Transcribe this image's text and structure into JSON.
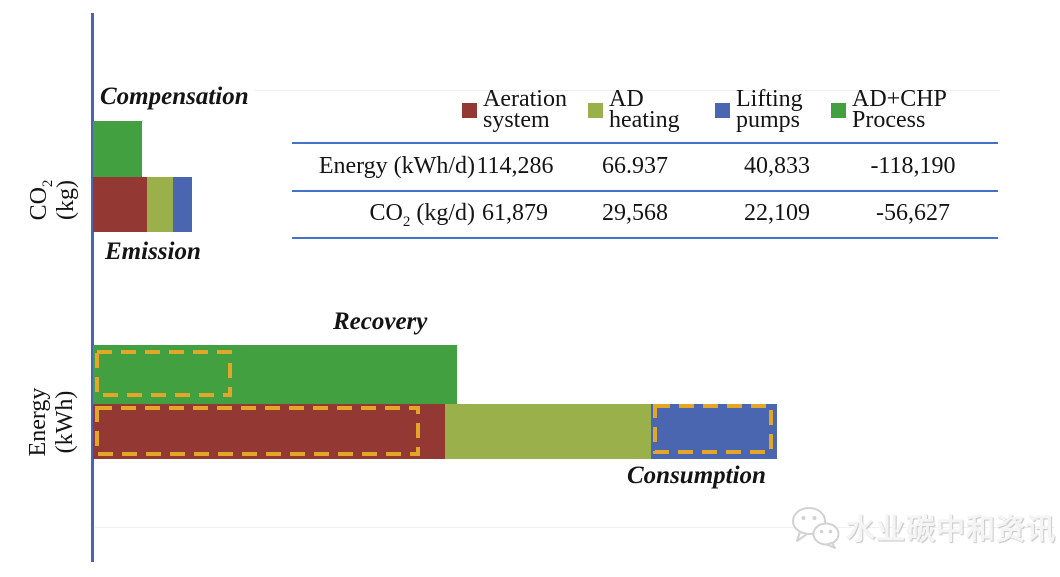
{
  "figure": {
    "labels": {
      "compensation": "Compensation",
      "emission": "Emission",
      "recovery": "Recovery",
      "consumption": "Consumption"
    },
    "axes": {
      "co2": {
        "main": "CO",
        "sub": "2",
        "unit": "(kg)"
      },
      "energy": {
        "main": "Energy",
        "sub": "",
        "unit": "(kWh)"
      }
    }
  },
  "legend": {
    "items": [
      {
        "line1": "Aeration",
        "line2": "system",
        "color": "#943834"
      },
      {
        "line1": "AD",
        "line2": "heating",
        "color": "#9AB04A"
      },
      {
        "line1": "Lifting",
        "line2": "pumps",
        "color": "#4A66B0"
      },
      {
        "line1": "AD+CHP",
        "line2": "Process",
        "color": "#43A040"
      }
    ]
  },
  "table": {
    "rows": [
      {
        "label_main": "Energy (kWh/d)",
        "label_sub": "",
        "label_rest": "",
        "values": [
          "114,286",
          "66.937",
          "40,833",
          "-118,190"
        ]
      },
      {
        "label_main": "CO",
        "label_sub": "2",
        "label_rest": " (kg/d)",
        "values": [
          "61,879",
          "29,568",
          "22,109",
          "-56,627"
        ]
      }
    ]
  },
  "watermark": {
    "text": "水业碳中和资讯"
  },
  "colors": {
    "axis": "#4A64B4",
    "table_rule": "#4472C4",
    "dash": "#E2A629"
  },
  "chart_data": [
    {
      "type": "bar",
      "orientation": "horizontal",
      "title": "CO2 (kg)",
      "unit": "kg/d",
      "rows": [
        "Compensation",
        "Emission"
      ],
      "legend_position": "top-right-table",
      "grid": false,
      "series": [
        {
          "name": "Aeration system",
          "row": "Emission",
          "value": 61879,
          "color": "#943834"
        },
        {
          "name": "AD heating",
          "row": "Emission",
          "value": 29568,
          "color": "#9AB04A"
        },
        {
          "name": "Lifting pumps",
          "row": "Emission",
          "value": 22109,
          "color": "#4A66B0"
        },
        {
          "name": "AD+CHP Process",
          "row": "Compensation",
          "value": 56627,
          "color": "#43A040"
        }
      ],
      "table_values_kg_per_d": [
        61879,
        29568,
        22109,
        -56627
      ]
    },
    {
      "type": "bar",
      "orientation": "horizontal",
      "title": "Energy (kWh)",
      "unit": "kWh/d",
      "rows": [
        "Recovery",
        "Consumption"
      ],
      "grid": false,
      "series": [
        {
          "name": "Aeration system",
          "row": "Consumption",
          "value": 114286,
          "color": "#943834",
          "highlighted": true
        },
        {
          "name": "AD heating",
          "row": "Consumption",
          "value": 66937,
          "color": "#9AB04A",
          "highlighted": false
        },
        {
          "name": "Lifting pumps",
          "row": "Consumption",
          "value": 40833,
          "color": "#4A66B0",
          "highlighted": true
        },
        {
          "name": "AD+CHP Process",
          "row": "Recovery",
          "value": 118190,
          "color": "#43A040",
          "highlighted": "partial"
        }
      ],
      "table_values_kwh_per_d": [
        114286,
        66937,
        40833,
        -118190
      ]
    }
  ]
}
